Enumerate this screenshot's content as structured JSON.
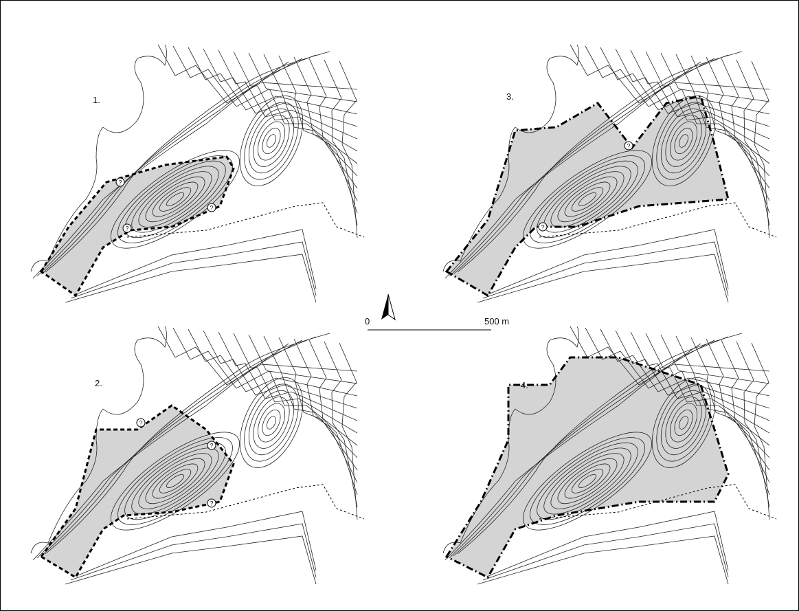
{
  "panels": [
    {
      "label": "1.",
      "markers": [
        "?",
        "?",
        "?"
      ]
    },
    {
      "label": "2.",
      "markers": [
        "?",
        "?",
        "?"
      ]
    },
    {
      "label": "3.",
      "markers": [
        "?",
        "?"
      ]
    },
    {
      "label": "4.",
      "markers": []
    }
  ],
  "scale_bar": {
    "start": "0",
    "end": "500 m"
  }
}
